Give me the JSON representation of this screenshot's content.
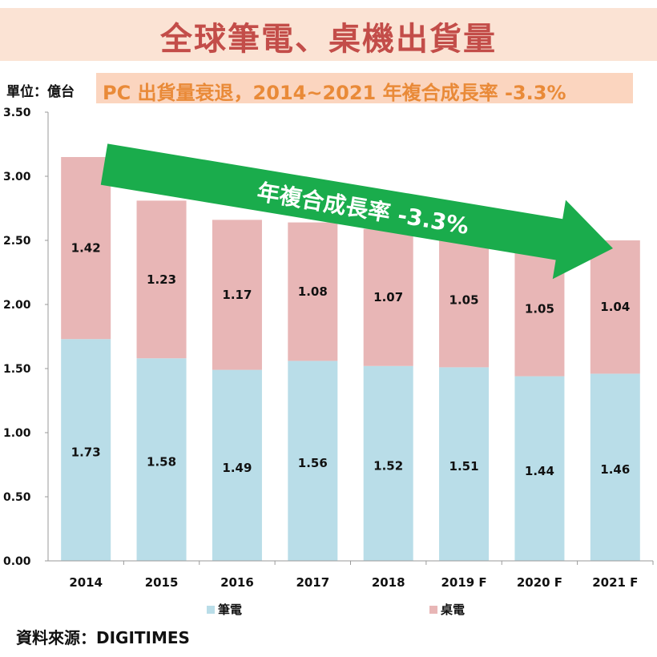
{
  "title": "全球筆電、桌機出貨量",
  "unit": "單位：億台",
  "subtitle": "PC 出貨量衰退，2014~2021 年複合成長率 -3.3%",
  "arrow_text": "年複合成長率 -3.3%",
  "source": "資料來源：DIGITIMES",
  "colors": {
    "laptop": "#b9dde8",
    "desktop": "#e8b6b6",
    "arrow": "#1aac4c",
    "title": "#c34d49",
    "subtitle": "#e98a38"
  },
  "chart_data": {
    "type": "bar",
    "stacked": true,
    "categories": [
      "2014",
      "2015",
      "2016",
      "2017",
      "2018",
      "2019 F",
      "2020 F",
      "2021 F"
    ],
    "series": [
      {
        "name": "筆電",
        "values": [
          1.73,
          1.58,
          1.49,
          1.56,
          1.52,
          1.51,
          1.44,
          1.46
        ]
      },
      {
        "name": "桌電",
        "values": [
          1.42,
          1.23,
          1.17,
          1.08,
          1.07,
          1.05,
          1.05,
          1.04
        ]
      }
    ],
    "ylim": [
      0,
      3.5
    ],
    "yticks": [
      "0.00",
      "0.50",
      "1.00",
      "1.50",
      "2.00",
      "2.50",
      "3.00",
      "3.50"
    ],
    "legend_position": "bottom"
  }
}
